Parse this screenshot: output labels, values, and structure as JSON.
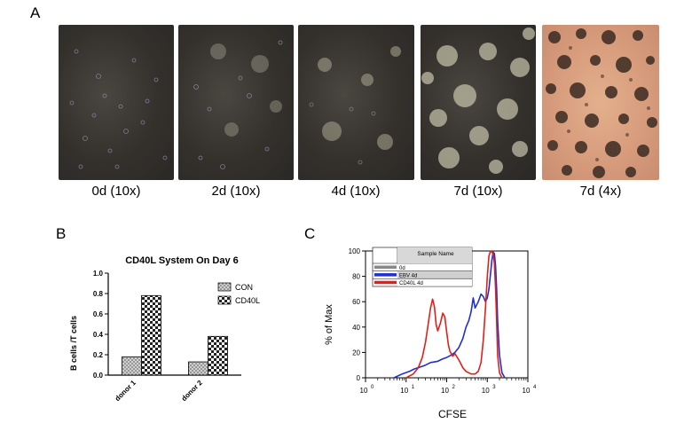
{
  "panel_labels": {
    "a": "A",
    "b": "B",
    "c": "C"
  },
  "micrographs": [
    {
      "caption": "0d (10x)",
      "tone": "dark",
      "colonies": 0
    },
    {
      "caption": "2d (10x)",
      "tone": "dark",
      "colonies": 4
    },
    {
      "caption": "4d (10x)",
      "tone": "dark",
      "colonies": 5
    },
    {
      "caption": "7d (10x)",
      "tone": "dark",
      "colonies": 12
    },
    {
      "caption": "7d (4x)",
      "tone": "pink",
      "colonies": 0
    }
  ],
  "chart_data": [
    {
      "type": "bar",
      "title": "CD40L System On Day 6",
      "ylabel": "B cells /T cells",
      "xlabel": "",
      "categories": [
        "donor 1",
        "donor 2"
      ],
      "series": [
        {
          "name": "CON",
          "values": [
            0.18,
            0.13
          ],
          "pattern": "dots",
          "color": "#8a8a8a"
        },
        {
          "name": "CD40L",
          "values": [
            0.78,
            0.38
          ],
          "pattern": "checker",
          "color": "#222222"
        }
      ],
      "ylim": [
        0,
        1.0
      ],
      "yticks": [
        "0.0",
        "0.2",
        "0.4",
        "0.6",
        "0.8",
        "1.0"
      ],
      "legend_position": "top-right"
    },
    {
      "type": "line",
      "xlabel": "CFSE",
      "ylabel": "% of Max",
      "xscale": "log",
      "xlim": [
        1,
        10000
      ],
      "ylim": [
        0,
        100
      ],
      "yticks": [
        "0",
        "20",
        "40",
        "60",
        "80",
        "100"
      ],
      "xticks": [
        {
          "base": "10",
          "exp": "0"
        },
        {
          "base": "10",
          "exp": "1"
        },
        {
          "base": "10",
          "exp": "2"
        },
        {
          "base": "10",
          "exp": "3"
        },
        {
          "base": "10",
          "exp": "4"
        }
      ],
      "legend_header": "Sample Name",
      "series": [
        {
          "name": "0d",
          "color": "#888888",
          "x": [],
          "y": []
        },
        {
          "name": "EBV 4d",
          "color": "#1f2fd0",
          "x": [
            5,
            8,
            12,
            16,
            20,
            30,
            40,
            60,
            80,
            100,
            130,
            160,
            200,
            250,
            300,
            350,
            400,
            450,
            500,
            600,
            700,
            800,
            900,
            1000,
            1100,
            1200,
            1300,
            1400,
            1500,
            1600,
            1700,
            1800,
            2000,
            2300,
            2700
          ],
          "y": [
            0,
            3,
            5,
            7,
            8,
            10,
            12,
            13,
            15,
            16,
            18,
            20,
            24,
            31,
            40,
            45,
            52,
            63,
            55,
            60,
            66,
            64,
            60,
            63,
            70,
            82,
            93,
            99,
            98,
            88,
            70,
            45,
            18,
            4,
            0
          ]
        },
        {
          "name": "CD40L 4d",
          "color": "#e0201a",
          "x": [
            10,
            15,
            20,
            25,
            30,
            35,
            40,
            45,
            50,
            55,
            60,
            70,
            80,
            90,
            100,
            110,
            120,
            140,
            160,
            200,
            250,
            300,
            400,
            500,
            600,
            700,
            800,
            900,
            1000,
            1100,
            1200,
            1300,
            1400,
            1500,
            1600,
            1700,
            1800,
            2000,
            2300
          ],
          "y": [
            0,
            3,
            8,
            16,
            28,
            42,
            55,
            62,
            56,
            42,
            37,
            43,
            51,
            48,
            36,
            26,
            21,
            17,
            19,
            14,
            8,
            5,
            3,
            3,
            5,
            12,
            30,
            55,
            80,
            96,
            100,
            99,
            98,
            90,
            70,
            45,
            18,
            4,
            0
          ]
        }
      ]
    }
  ]
}
